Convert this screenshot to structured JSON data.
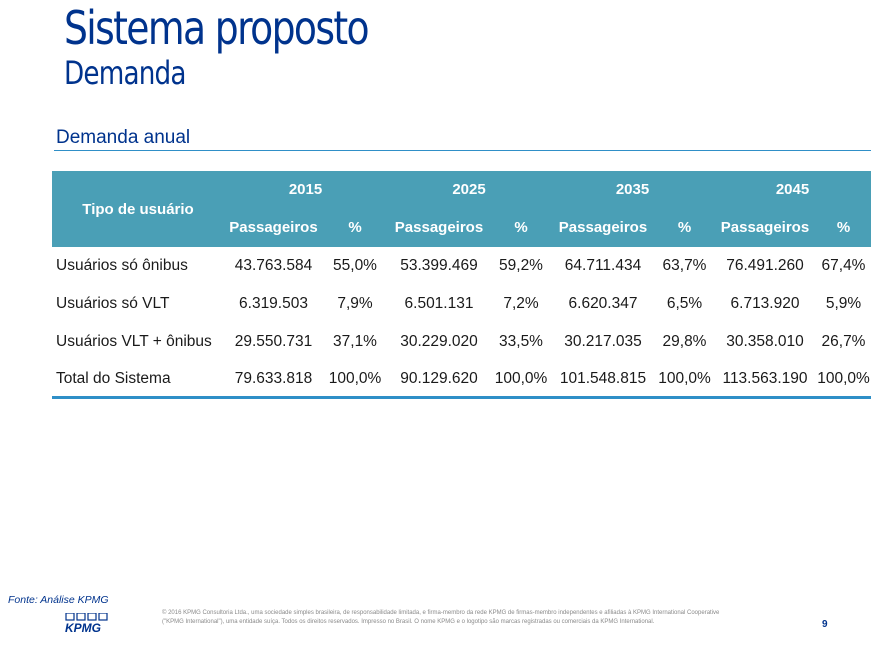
{
  "header": {
    "title": "Sistema proposto",
    "subtitle": "Demanda"
  },
  "section": {
    "title": "Demanda anual"
  },
  "table": {
    "type_header": "Tipo de usuário",
    "years": [
      "2015",
      "2025",
      "2035",
      "2045"
    ],
    "sub_headers": {
      "passengers": "Passageiros",
      "percent": "%"
    },
    "rows": [
      {
        "label": "Usuários só ônibus",
        "values": [
          "43.763.584",
          "55,0%",
          "53.399.469",
          "59,2%",
          "64.711.434",
          "63,7%",
          "76.491.260",
          "67,4%"
        ]
      },
      {
        "label": "Usuários só VLT",
        "values": [
          "6.319.503",
          "7,9%",
          "6.501.131",
          "7,2%",
          "6.620.347",
          "6,5%",
          "6.713.920",
          "5,9%"
        ]
      },
      {
        "label": "Usuários VLT + ônibus",
        "values": [
          "29.550.731",
          "37,1%",
          "30.229.020",
          "33,5%",
          "30.217.035",
          "29,8%",
          "30.358.010",
          "26,7%"
        ]
      },
      {
        "label": "Total do Sistema",
        "values": [
          "79.633.818",
          "100,0%",
          "90.129.620",
          "100,0%",
          "101.548.815",
          "100,0%",
          "113.563.190",
          "100,0%"
        ]
      }
    ]
  },
  "footer": {
    "source": "Fonte: Análise KPMG",
    "logo_text": "KPMG",
    "disclaimer": "© 2016 KPMG Consultoria Ltda., uma sociedade simples brasileira, de responsabilidade limitada, e firma-membro da rede KPMG de firmas-membro independentes e afiliadas à KPMG International Cooperative (\"KPMG International\"), uma entidade suíça. Todos os direitos reservados. Impresso no Brasil. O nome KPMG e o logotipo são marcas registradas ou comerciais da KPMG International.",
    "page_number": "9"
  },
  "colors": {
    "brand_blue": "#00338d",
    "table_header": "#4a9fb6",
    "rule": "#2f8fc7"
  }
}
